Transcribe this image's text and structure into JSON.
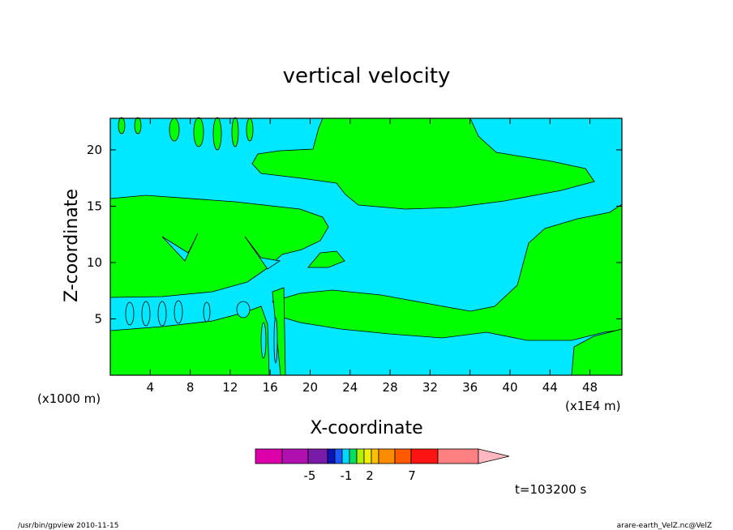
{
  "chart_data": {
    "type": "contour",
    "title": "vertical velocity",
    "x_label": "X-coordinate",
    "y_label": "Z-coordinate",
    "x_unit_left": "(x1000 m)",
    "x_unit_right": "(x1E4 m)",
    "xlim": [
      0,
      51.2
    ],
    "xticks": [
      4,
      8,
      12,
      16,
      20,
      24,
      28,
      32,
      36,
      40,
      44,
      48
    ],
    "ylim": [
      0,
      22.8
    ],
    "yticks": [
      5,
      10,
      15,
      20
    ],
    "colorbar": {
      "colors": [
        "#dd00aa",
        "#b010b0",
        "#7a1aa8",
        "#0a12b8",
        "#1a5aff",
        "#00d8ff",
        "#00e060",
        "#b0f000",
        "#f0f000",
        "#ffc000",
        "#ff8c00",
        "#ff5a00",
        "#ff1414",
        "#ff8080",
        "#ffb8c0"
      ],
      "ticks": [
        -5,
        -1,
        2,
        7
      ]
    },
    "time_label": "t=103200 s",
    "footer_left": "/usr/bin/gpview   2010-11-15",
    "footer_right": "arare-earth_VelZ.nc@VelZ"
  }
}
